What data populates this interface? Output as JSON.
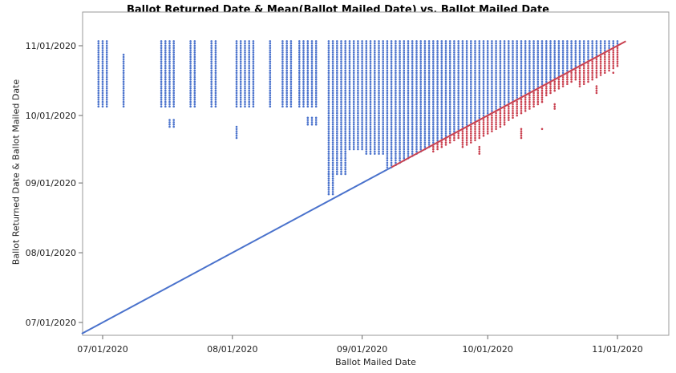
{
  "chart_data": {
    "type": "scatter",
    "title": "Ballot Returned Date & Mean(Ballot Mailed Date) vs. Ballot Mailed Date",
    "xlabel": "Ballot Mailed Date",
    "ylabel": "Ballot Returned Date & Ballot Mailed Date",
    "xlim": [
      "06/26/2020",
      "11/12/2020"
    ],
    "ylim": [
      "06/25/2020",
      "11/09/2020"
    ],
    "x_ticks": [
      "07/01/2020",
      "08/01/2020",
      "09/01/2020",
      "10/01/2020",
      "11/01/2020"
    ],
    "y_ticks": [
      "07/01/2020",
      "08/01/2020",
      "09/01/2020",
      "10/01/2020",
      "11/01/2020"
    ],
    "grid": false,
    "legend": "none",
    "colors": {
      "returned": "#4a72cc",
      "mean_mailed": "#c9404f"
    },
    "series": [
      {
        "label_key": "returned",
        "point_ranges": [
          {
            "x_from": "06/30/2020",
            "x_to": "07/02/2020",
            "y_from": "10/05/2020",
            "y_to": "11/03/2020"
          },
          {
            "x_from": "07/06/2020",
            "x_to": "07/06/2020",
            "y_from": "10/05/2020",
            "y_to": "10/28/2020"
          },
          {
            "x_from": "07/15/2020",
            "x_to": "07/18/2020",
            "y_from": "10/05/2020",
            "y_to": "11/03/2020"
          },
          {
            "x_from": "07/17/2020",
            "x_to": "07/18/2020",
            "y_from": "09/26/2020",
            "y_to": "09/29/2020"
          },
          {
            "x_from": "07/22/2020",
            "x_to": "07/23/2020",
            "y_from": "10/05/2020",
            "y_to": "11/03/2020"
          },
          {
            "x_from": "07/27/2020",
            "x_to": "07/28/2020",
            "y_from": "10/05/2020",
            "y_to": "11/03/2020"
          },
          {
            "x_from": "08/02/2020",
            "x_to": "08/06/2020",
            "y_from": "10/05/2020",
            "y_to": "11/03/2020"
          },
          {
            "x_from": "08/02/2020",
            "x_to": "08/02/2020",
            "y_from": "09/21/2020",
            "y_to": "09/26/2020"
          },
          {
            "x_from": "08/10/2020",
            "x_to": "08/10/2020",
            "y_from": "10/05/2020",
            "y_to": "11/03/2020"
          },
          {
            "x_from": "08/13/2020",
            "x_to": "08/15/2020",
            "y_from": "10/05/2020",
            "y_to": "11/03/2020"
          },
          {
            "x_from": "08/17/2020",
            "x_to": "08/21/2020",
            "y_from": "10/05/2020",
            "y_to": "11/03/2020"
          },
          {
            "x_from": "08/19/2020",
            "x_to": "08/21/2020",
            "y_from": "09/27/2020",
            "y_to": "09/30/2020"
          },
          {
            "x_from": "08/24/2020",
            "x_to": "08/28/2020",
            "y_from": "09/05/2020",
            "y_to": "11/03/2020"
          },
          {
            "x_from": "08/24/2020",
            "x_to": "08/25/2020",
            "y_from": "08/27/2020",
            "y_to": "09/05/2020"
          },
          {
            "x_from": "08/29/2020",
            "x_to": "09/01/2020",
            "y_from": "09/16/2020",
            "y_to": "11/03/2020"
          },
          {
            "x_from": "09/02/2020",
            "x_to": "09/06/2020",
            "y_from": "09/14/2020",
            "y_to": "11/03/2020"
          },
          {
            "x_from": "09/07/2020",
            "x_to": "09/07/2020",
            "y_from": "09/08/2020",
            "y_to": "11/03/2020"
          },
          {
            "x_from": "09/08/2020",
            "x_to": "11/01/2020",
            "y_from": "diagonal",
            "y_to": "11/03/2020"
          }
        ]
      },
      {
        "label_key": "mean_mailed",
        "line": {
          "x_from": "06/26/2020",
          "x_to": "11/03/2020",
          "blue_until": "09/08/2020"
        },
        "point_ranges": [
          {
            "x_from": "09/18/2020",
            "x_to": "09/24/2020",
            "y_from": "offset:-3",
            "y_to": "diagonal"
          },
          {
            "x_from": "09/25/2020",
            "x_to": "10/05/2020",
            "y_from": "offset:-8",
            "y_to": "diagonal"
          },
          {
            "x_from": "10/06/2020",
            "x_to": "10/14/2020",
            "y_from": "offset:-7",
            "y_to": "diagonal"
          },
          {
            "x_from": "10/15/2020",
            "x_to": "10/22/2020",
            "y_from": "offset:-5",
            "y_to": "diagonal"
          },
          {
            "x_from": "10/23/2020",
            "x_to": "11/01/2020",
            "y_from": "offset:-9",
            "y_to": "diagonal"
          },
          {
            "x_from": "09/29/2020",
            "x_to": "09/29/2020",
            "y_from": "09/14/2020",
            "y_to": "09/17/2020"
          },
          {
            "x_from": "10/09/2020",
            "x_to": "10/09/2020",
            "y_from": "09/21/2020",
            "y_to": "09/25/2020"
          },
          {
            "x_from": "10/14/2020",
            "x_to": "10/14/2020",
            "y_from": "09/25/2020",
            "y_to": "09/25/2020"
          },
          {
            "x_from": "10/17/2020",
            "x_to": "10/17/2020",
            "y_from": "10/04/2020",
            "y_to": "10/06/2020"
          },
          {
            "x_from": "10/27/2020",
            "x_to": "10/27/2020",
            "y_from": "10/11/2020",
            "y_to": "10/14/2020"
          },
          {
            "x_from": "10/31/2020",
            "x_to": "10/31/2020",
            "y_from": "10/20/2020",
            "y_to": "10/20/2020"
          }
        ]
      }
    ]
  }
}
